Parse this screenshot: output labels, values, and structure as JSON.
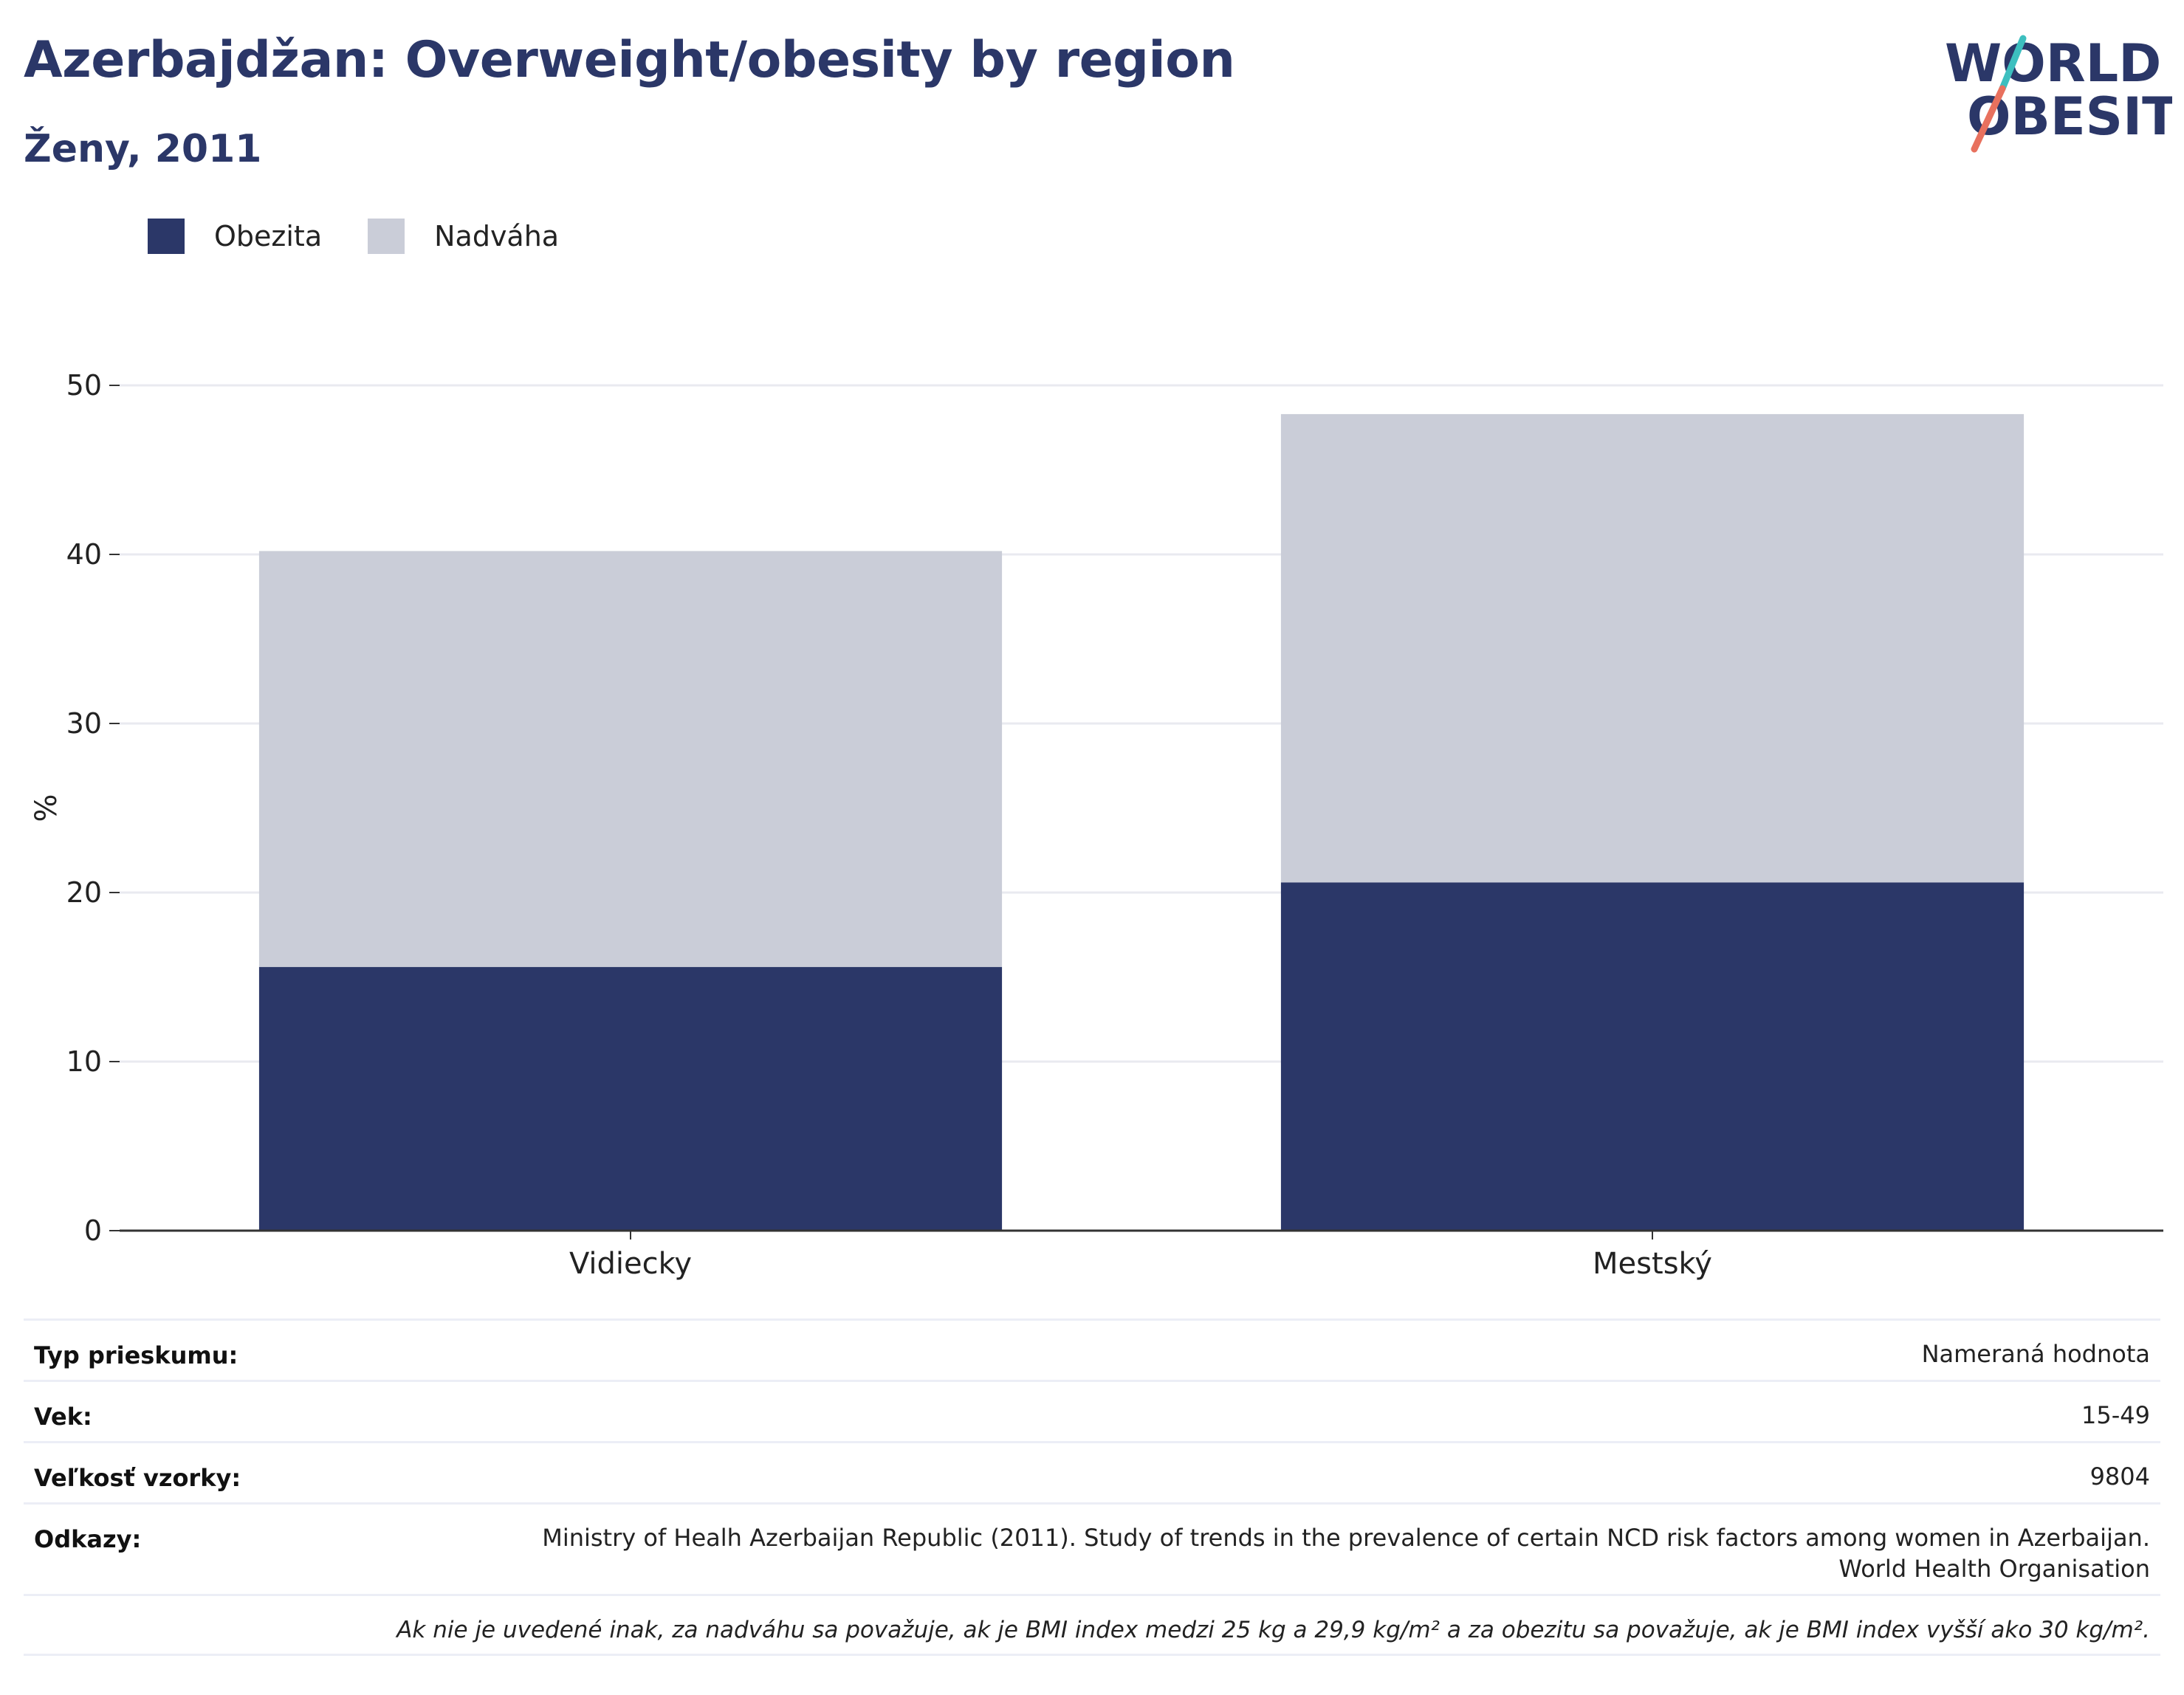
{
  "header": {
    "title": "Azerbajdžan: Overweight/obesity by region",
    "subtitle": "Ženy, 2011"
  },
  "logo": {
    "line1": "WORLD",
    "line2": "OBESITY",
    "colors": {
      "text": "#2b3768",
      "slash_top": "#3dbfbf",
      "slash_bottom": "#e8715e"
    }
  },
  "legend": [
    {
      "label": "Obezita",
      "color": "#2b3768"
    },
    {
      "label": "Nadváha",
      "color": "#cacdd8"
    }
  ],
  "chart_data": {
    "type": "bar",
    "stacked": true,
    "categories": [
      "Vidiecky",
      "Mestský"
    ],
    "series": [
      {
        "name": "Obezita",
        "values": [
          15.6,
          20.6
        ],
        "color": "#2b3768"
      },
      {
        "name": "Nadváha",
        "values": [
          24.6,
          27.7
        ],
        "color": "#cacdd8"
      }
    ],
    "ylabel": "%",
    "xlabel": "",
    "ylim": [
      0,
      50
    ],
    "yticks": [
      0,
      10,
      20,
      30,
      40,
      50
    ],
    "grid": true,
    "legend_position": "top-left"
  },
  "info": {
    "survey_type_label": "Typ prieskumu:",
    "survey_type_value": "Nameraná hodnota",
    "age_label": "Vek:",
    "age_value": "15-49",
    "sample_label": "Veľkosť vzorky:",
    "sample_value": "9804",
    "refs_label": "Odkazy:",
    "refs_line1": "Ministry of Healh Azerbaijan Republic (2011). Study of trends in the prevalence of certain NCD risk factors among women in Azerbaijan.",
    "refs_line2": "World Health Organisation",
    "note": "Ak nie je uvedené inak, za nadváhu sa považuje, ak je BMI index medzi 25 kg a 29,9 kg/m² a za obezitu sa považuje, ak je BMI index vyšší ako 30 kg/m²."
  }
}
